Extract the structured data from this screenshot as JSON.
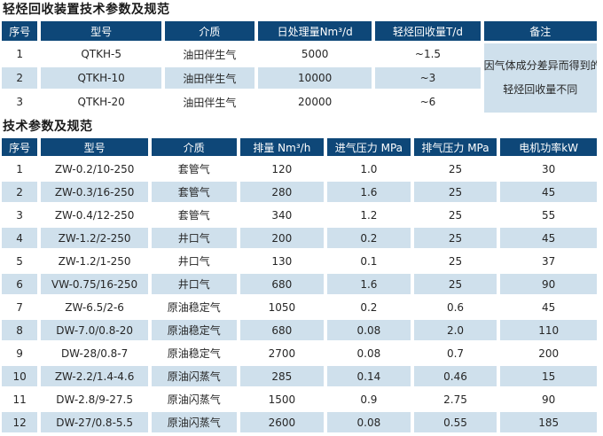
{
  "colors": {
    "header_bg": "#0e4778",
    "header_text": "#ffffff",
    "row_alt_bg": "#cfe0ec",
    "body_text": "#262626"
  },
  "table1": {
    "title": "轻烃回收装置技术参数及规范",
    "headers": [
      "序号",
      "型号",
      "介质",
      "日处理量Nm³/d",
      "轻烃回收量T/d",
      "备注"
    ],
    "rows": [
      [
        "1",
        "QTKH-5",
        "油田伴生气",
        "5000",
        "~1.5"
      ],
      [
        "2",
        "QTKH-10",
        "油田伴生气",
        "10000",
        "~3"
      ],
      [
        "3",
        "QTKH-20",
        "油田伴生气",
        "20000",
        "~6"
      ]
    ],
    "remark_lines": [
      "因气体成分差异而得到的",
      "轻烃回收量不同"
    ]
  },
  "table2": {
    "title": "技术参数及规范",
    "headers": [
      "序号",
      "型号",
      "介质",
      "排量 Nm³/h",
      "进气压力 MPa",
      "排气压力 MPa",
      "电机功率kW"
    ],
    "rows": [
      [
        "1",
        "ZW-0.2/10-250",
        "套管气",
        "120",
        "1.0",
        "25",
        "30"
      ],
      [
        "2",
        "ZW-0.3/16-250",
        "套管气",
        "280",
        "1.6",
        "25",
        "45"
      ],
      [
        "3",
        "ZW-0.4/12-250",
        "套管气",
        "340",
        "1.2",
        "25",
        "55"
      ],
      [
        "4",
        "ZW-1.2/2-250",
        "井口气",
        "200",
        "0.2",
        "25",
        "45"
      ],
      [
        "5",
        "ZW-1.2/1-250",
        "井口气",
        "130",
        "0.1",
        "25",
        "37"
      ],
      [
        "6",
        "VW-0.75/16-250",
        "井口气",
        "680",
        "1.6",
        "25",
        "90"
      ],
      [
        "7",
        "ZW-6.5/2-6",
        "原油稳定气",
        "1050",
        "0.2",
        "0.6",
        "45"
      ],
      [
        "8",
        "DW-7.0/0.8-20",
        "原油稳定气",
        "680",
        "0.08",
        "2.0",
        "110"
      ],
      [
        "9",
        "DW-28/0.8-7",
        "原油稳定气",
        "2700",
        "0.08",
        "0.7",
        "200"
      ],
      [
        "10",
        "ZW-2.2/1.4-4.6",
        "原油闪蒸气",
        "285",
        "0.14",
        "0.46",
        "15"
      ],
      [
        "11",
        "DW-2.8/9-27.5",
        "原油闪蒸气",
        "1500",
        "0.9",
        "2.75",
        "90"
      ],
      [
        "12",
        "DW-27/0.8-5.5",
        "原油闪蒸气",
        "2600",
        "0.08",
        "0.55",
        "185"
      ]
    ]
  }
}
